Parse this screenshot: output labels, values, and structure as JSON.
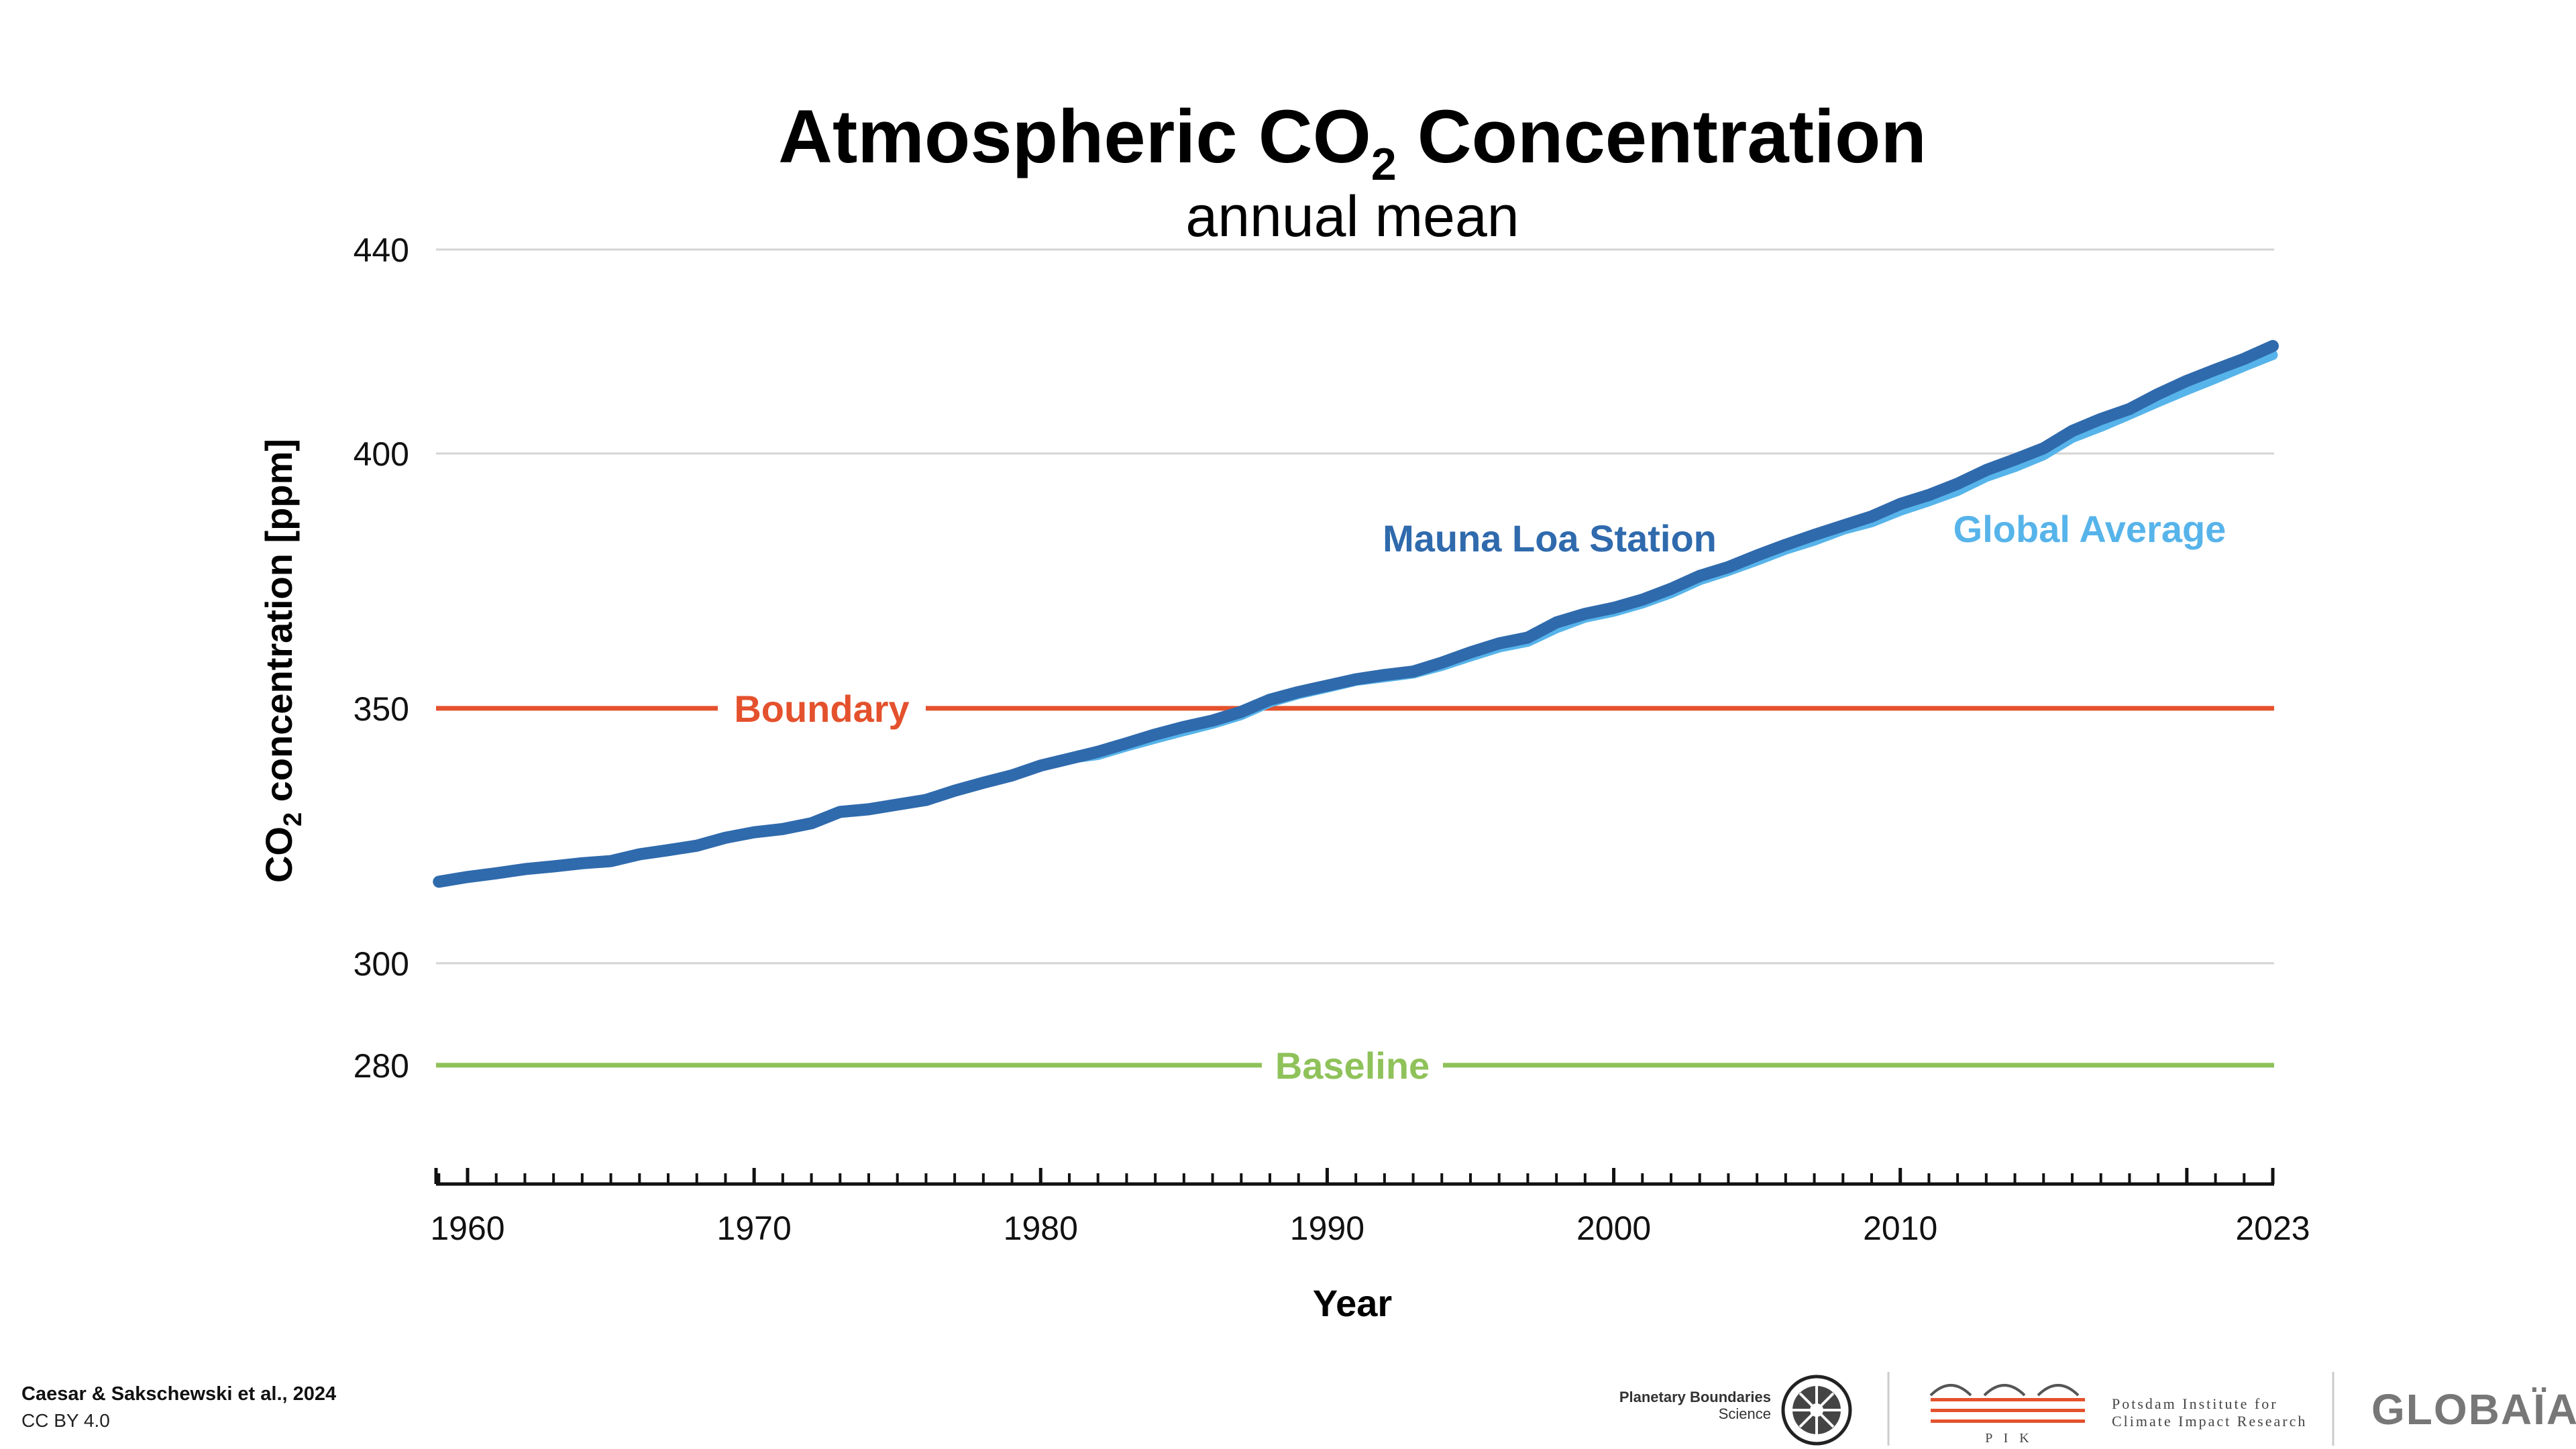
{
  "chart_data": {
    "type": "line",
    "title": "Atmospheric CO",
    "title_subscript": "2",
    "title_suffix": " Concentration",
    "subtitle": "annual mean",
    "ylabel_prefix": "CO",
    "ylabel_subscript": "2",
    "ylabel_suffix": " concentration [ppm]",
    "xlabel": "Year",
    "xlim": [
      1959,
      2023
    ],
    "ylim": [
      258,
      440
    ],
    "yticks": [
      280,
      300,
      350,
      400,
      440
    ],
    "gridlines": [
      300,
      400,
      440
    ],
    "xticks": [
      1960,
      1970,
      1980,
      1990,
      2000,
      2010,
      2023
    ],
    "grid": true,
    "series": [
      {
        "name": "Mauna Loa Station",
        "color": "#2f6aad",
        "x": [
          1959,
          1960,
          1961,
          1962,
          1963,
          1964,
          1965,
          1966,
          1967,
          1968,
          1969,
          1970,
          1971,
          1972,
          1973,
          1974,
          1975,
          1976,
          1977,
          1978,
          1979,
          1980,
          1981,
          1982,
          1983,
          1984,
          1985,
          1986,
          1987,
          1988,
          1989,
          1990,
          1991,
          1992,
          1993,
          1994,
          1995,
          1996,
          1997,
          1998,
          1999,
          2000,
          2001,
          2002,
          2003,
          2004,
          2005,
          2006,
          2007,
          2008,
          2009,
          2010,
          2011,
          2012,
          2013,
          2014,
          2015,
          2016,
          2017,
          2018,
          2019,
          2020,
          2021,
          2022,
          2023
        ],
        "values": [
          315.98,
          316.91,
          317.64,
          318.45,
          318.99,
          319.62,
          320.04,
          321.37,
          322.18,
          323.05,
          324.62,
          325.68,
          326.32,
          327.46,
          329.68,
          330.19,
          331.12,
          332.03,
          333.84,
          335.41,
          336.84,
          338.76,
          340.12,
          341.48,
          343.15,
          344.87,
          346.35,
          347.61,
          349.31,
          351.69,
          353.2,
          354.45,
          355.7,
          356.54,
          357.21,
          358.96,
          360.97,
          362.74,
          363.88,
          366.84,
          368.54,
          369.71,
          371.32,
          373.45,
          375.98,
          377.7,
          379.98,
          382.09,
          384.02,
          385.83,
          387.64,
          390.1,
          391.85,
          394.06,
          396.74,
          398.81,
          401.01,
          404.41,
          406.76,
          408.72,
          411.66,
          414.24,
          416.45,
          418.56,
          421.08
        ]
      },
      {
        "name": "Global Average",
        "color": "#57b4ea",
        "x": [
          1980,
          1981,
          1982,
          1983,
          1984,
          1985,
          1986,
          1987,
          1988,
          1989,
          1990,
          1991,
          1992,
          1993,
          1994,
          1995,
          1996,
          1997,
          1998,
          1999,
          2000,
          2001,
          2002,
          2003,
          2004,
          2005,
          2006,
          2007,
          2008,
          2009,
          2010,
          2011,
          2012,
          2013,
          2014,
          2015,
          2016,
          2017,
          2018,
          2019,
          2020,
          2021,
          2022,
          2023
        ],
        "values": [
          338.91,
          340.11,
          340.86,
          342.53,
          344.07,
          345.54,
          346.97,
          348.68,
          351.16,
          352.79,
          354.06,
          355.39,
          356.09,
          356.83,
          358.33,
          360.17,
          361.93,
          363.05,
          365.7,
          367.8,
          368.96,
          370.57,
          372.58,
          375.14,
          376.95,
          378.98,
          381.15,
          382.9,
          385.02,
          386.5,
          388.76,
          390.63,
          392.65,
          395.4,
          397.34,
          399.65,
          403.06,
          405.22,
          407.62,
          410.07,
          412.44,
          414.7,
          417.07,
          419.31
        ]
      }
    ],
    "reference_lines": [
      {
        "label": "Boundary",
        "value": 350,
        "color": "#e4512d"
      },
      {
        "label": "Baseline",
        "value": 280,
        "color": "#8fc25a"
      }
    ]
  },
  "footer": {
    "citation": "Caesar & Sakschewski et al., 2024",
    "license": "CC BY 4.0"
  },
  "logos": {
    "planetary_boundaries_line1": "Planetary Boundaries",
    "planetary_boundaries_line2": "Science",
    "pik_line1": "Potsdam Institute for",
    "pik_line2": "Climate Impact Research",
    "pik_abbrev": "P I K",
    "globaia": "GLOBAÏA"
  },
  "colors": {
    "grid": "#d4d4d4",
    "axis": "#111111"
  }
}
